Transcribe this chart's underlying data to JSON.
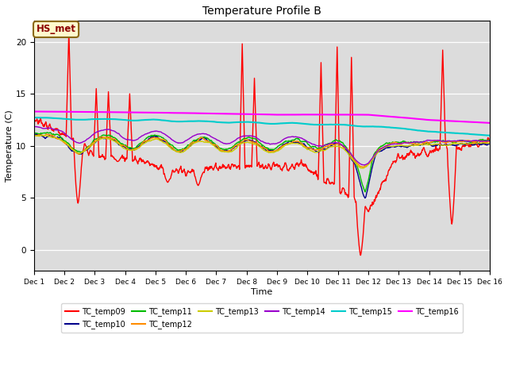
{
  "title": "Temperature Profile B",
  "xlabel": "Time",
  "ylabel": "Temperature (C)",
  "ylim": [
    -2,
    22
  ],
  "xlim": [
    0,
    15
  ],
  "xtick_labels": [
    "Dec 1",
    "Dec 2",
    "Dec 3",
    "Dec 4",
    "Dec 5",
    "Dec 6",
    "Dec 7",
    "Dec 8",
    "Dec 9",
    "Dec 10",
    "Dec 11",
    "Dec 12",
    "Dec 13",
    "Dec 14",
    "Dec 15",
    "Dec 16"
  ],
  "xtick_positions": [
    0,
    1,
    2,
    3,
    4,
    5,
    6,
    7,
    8,
    9,
    10,
    11,
    12,
    13,
    14,
    15
  ],
  "annotation_text": "HS_met",
  "annotation_color": "#8B0000",
  "annotation_bg": "#FFFACD",
  "annotation_border": "#8B6914",
  "bg_color": "#DCDCDC",
  "series": {
    "TC_temp09": {
      "color": "#FF0000",
      "lw": 1.0
    },
    "TC_temp10": {
      "color": "#00008B",
      "lw": 1.0
    },
    "TC_temp11": {
      "color": "#00BB00",
      "lw": 1.0
    },
    "TC_temp12": {
      "color": "#FF8C00",
      "lw": 1.0
    },
    "TC_temp13": {
      "color": "#CCCC00",
      "lw": 1.0
    },
    "TC_temp14": {
      "color": "#9900CC",
      "lw": 1.0
    },
    "TC_temp15": {
      "color": "#00CCCC",
      "lw": 1.5
    },
    "TC_temp16": {
      "color": "#FF00FF",
      "lw": 1.5
    }
  },
  "legend_ncol_row1": 6,
  "legend_ncol_row2": 2
}
